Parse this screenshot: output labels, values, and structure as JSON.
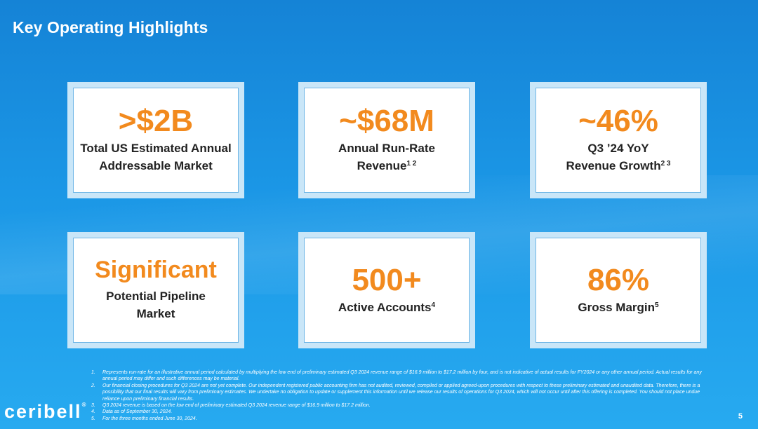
{
  "slide": {
    "title": "Key Operating Highlights",
    "page_number": "5"
  },
  "colors": {
    "accent_orange": "#f28a1e",
    "background_blue": "#1b97e6",
    "card_border": "#6fb6e6"
  },
  "cards": [
    {
      "metric": ">$2B",
      "label_line1": "Total US Estimated Annual",
      "label_line2": "Addressable Market",
      "footnote_refs": ""
    },
    {
      "metric": "~$68M",
      "label_line1": "Annual Run-Rate",
      "label_line2": "Revenue",
      "footnote_refs": "1 2"
    },
    {
      "metric": "~46%",
      "label_line1": "Q3 ’24 YoY",
      "label_line2": "Revenue Growth",
      "footnote_refs": "2 3"
    },
    {
      "metric": "Significant",
      "label_line1": "Potential Pipeline",
      "label_line2": "Market",
      "footnote_refs": ""
    },
    {
      "metric": "500+",
      "label_line1": "Active Accounts",
      "label_line2": "",
      "footnote_refs": "4"
    },
    {
      "metric": "86%",
      "label_line1": "Gross Margin",
      "label_line2": "",
      "footnote_refs": "5"
    }
  ],
  "footnotes": [
    {
      "num": "1.",
      "text": "Represents run-rate for an illustrative annual period calculated by multiplying the low end of preliminary estimated Q3 2024 revenue range of $16.9 million to $17.2 million by four, and is not indicative of actual results for FY2024 or any other annual period. Actual results for any annual period may differ and such differences may be material."
    },
    {
      "num": "2.",
      "text": "Our financial closing procedures for Q3 2024 are not yet complete. Our independent registered public accounting firm has not audited, reviewed, compiled or applied agreed-upon procedures with respect to these preliminary estimated and unaudited data. Therefore, there is a possibility that our final results will vary from preliminary estimates. We undertake no obligation to update or supplement this information until we release our results of operations for Q3 2024, which will not occur until after this offering is completed. You should not place undue reliance upon preliminary financial results."
    },
    {
      "num": "3.",
      "text": "Q3 2024 revenue is based on the low end of preliminary estimated Q3 2024 revenue range of $16.9 million to $17.2 million."
    },
    {
      "num": "4.",
      "text": "Data as of September 30, 2024."
    },
    {
      "num": "5.",
      "text": "For the three months ended June 30, 2024."
    }
  ],
  "logo": {
    "text": "ceribell",
    "mark": "®"
  }
}
